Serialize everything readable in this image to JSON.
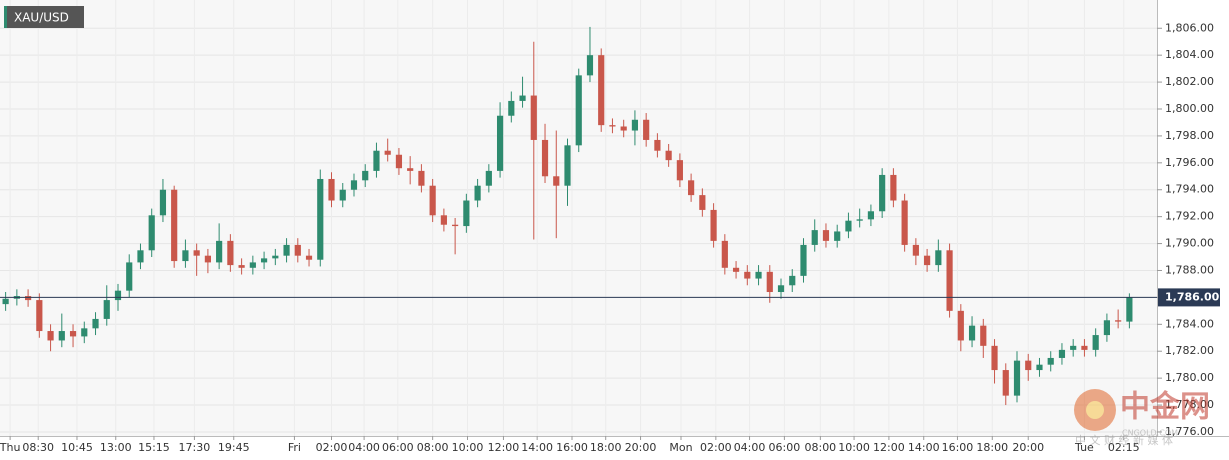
{
  "chart_data": {
    "type": "candlestick",
    "symbol": "XAU/USD",
    "up_color": "#2e8b6f",
    "down_color": "#c9574b",
    "grid": true,
    "open": [
      1785.5,
      1785.9,
      1786.1,
      1785.8,
      1783.5,
      1782.8,
      1783.5,
      1783.1,
      1783.7,
      1784.4,
      1785.8,
      1786.5,
      1788.6,
      1789.5,
      1792.1,
      1794.0,
      1788.7,
      1789.5,
      1789.1,
      1788.6,
      1790.2,
      1788.4,
      1788.2,
      1788.6,
      1788.9,
      1789.1,
      1789.9,
      1789.1,
      1788.8,
      1794.8,
      1793.2,
      1794.0,
      1794.7,
      1795.4,
      1796.9,
      1796.6,
      1795.6,
      1795.4,
      1794.3,
      1792.1,
      1791.4,
      1791.3,
      1793.2,
      1794.3,
      1795.4,
      1799.5,
      1800.6,
      1801.0,
      1797.7,
      1795.0,
      1794.3,
      1797.3,
      1802.5,
      1804.0,
      1798.8,
      1798.7,
      1798.4,
      1799.2,
      1797.7,
      1796.9,
      1796.2,
      1794.7,
      1793.6,
      1792.5,
      1790.2,
      1788.2,
      1787.9,
      1787.4,
      1787.9,
      1786.4,
      1786.9,
      1787.6,
      1789.9,
      1791.0,
      1790.2,
      1790.9,
      1791.7,
      1791.8,
      1792.4,
      1795.1,
      1793.2,
      1789.9,
      1789.1,
      1788.4,
      1789.5,
      1785.0,
      1782.8,
      1783.9,
      1782.4,
      1780.6,
      1778.7,
      1781.3,
      1780.6,
      1781.0,
      1781.5,
      1782.1,
      1782.4,
      1782.1,
      1783.2,
      1784.3,
      1784.2
    ],
    "high": [
      1786.4,
      1786.6,
      1786.6,
      1786.3,
      1784.0,
      1784.8,
      1784.0,
      1784.2,
      1784.9,
      1786.9,
      1787.0,
      1789.2,
      1790.0,
      1792.6,
      1794.8,
      1794.3,
      1790.3,
      1790.0,
      1789.6,
      1791.5,
      1790.7,
      1788.9,
      1789.1,
      1789.4,
      1789.6,
      1790.4,
      1790.4,
      1789.6,
      1795.5,
      1795.3,
      1794.5,
      1795.2,
      1795.9,
      1797.5,
      1797.8,
      1797.1,
      1796.5,
      1795.9,
      1794.8,
      1792.6,
      1791.9,
      1793.7,
      1794.8,
      1795.9,
      1800.5,
      1801.3,
      1802.4,
      1805.0,
      1798.9,
      1798.4,
      1797.8,
      1803.0,
      1806.1,
      1804.5,
      1799.3,
      1799.2,
      1799.9,
      1799.7,
      1798.2,
      1797.4,
      1796.7,
      1795.2,
      1794.1,
      1793.0,
      1790.7,
      1788.7,
      1788.4,
      1788.4,
      1788.4,
      1787.4,
      1788.1,
      1790.4,
      1791.8,
      1791.5,
      1791.4,
      1792.3,
      1792.6,
      1792.9,
      1795.6,
      1795.6,
      1793.7,
      1790.4,
      1789.6,
      1790.3,
      1790.0,
      1785.5,
      1784.6,
      1784.4,
      1782.9,
      1781.1,
      1782.0,
      1781.8,
      1781.5,
      1782.0,
      1782.6,
      1782.9,
      1782.9,
      1783.7,
      1784.8,
      1785.1,
      1786.3
    ],
    "low": [
      1785.0,
      1785.4,
      1785.3,
      1783.0,
      1782.0,
      1782.3,
      1782.3,
      1782.6,
      1783.2,
      1783.9,
      1785.0,
      1786.0,
      1788.1,
      1789.0,
      1791.6,
      1788.2,
      1788.2,
      1787.6,
      1787.8,
      1788.1,
      1787.9,
      1787.7,
      1787.7,
      1788.1,
      1788.4,
      1788.6,
      1788.6,
      1788.3,
      1788.3,
      1792.7,
      1792.7,
      1793.5,
      1794.2,
      1794.9,
      1796.1,
      1795.1,
      1794.4,
      1793.8,
      1791.6,
      1790.9,
      1789.2,
      1790.8,
      1792.7,
      1793.8,
      1794.9,
      1799.0,
      1800.1,
      1790.3,
      1794.5,
      1790.4,
      1792.8,
      1796.8,
      1802.0,
      1798.3,
      1798.2,
      1797.9,
      1797.3,
      1797.2,
      1796.4,
      1795.7,
      1794.2,
      1793.1,
      1792.0,
      1789.7,
      1787.7,
      1787.4,
      1786.9,
      1786.9,
      1785.6,
      1785.9,
      1786.4,
      1787.1,
      1789.4,
      1789.7,
      1789.7,
      1790.4,
      1791.2,
      1791.3,
      1791.9,
      1792.7,
      1789.4,
      1788.4,
      1787.9,
      1787.9,
      1784.5,
      1782.0,
      1782.3,
      1781.5,
      1779.6,
      1778.0,
      1778.2,
      1779.8,
      1780.1,
      1780.5,
      1781.0,
      1781.6,
      1781.6,
      1781.6,
      1782.7,
      1783.7,
      1783.7
    ],
    "close": [
      1785.9,
      1786.1,
      1785.8,
      1783.5,
      1782.8,
      1783.5,
      1783.1,
      1783.7,
      1784.4,
      1785.8,
      1786.5,
      1788.6,
      1789.5,
      1792.1,
      1794.0,
      1788.7,
      1789.5,
      1789.1,
      1788.6,
      1790.2,
      1788.4,
      1788.2,
      1788.6,
      1788.9,
      1789.1,
      1789.9,
      1789.1,
      1788.8,
      1794.8,
      1793.2,
      1794.0,
      1794.7,
      1795.4,
      1796.9,
      1796.6,
      1795.6,
      1795.4,
      1794.3,
      1792.1,
      1791.4,
      1791.3,
      1793.2,
      1794.3,
      1795.4,
      1799.5,
      1800.6,
      1801.0,
      1797.7,
      1795.0,
      1794.3,
      1797.3,
      1802.5,
      1804.0,
      1798.8,
      1798.7,
      1798.4,
      1799.2,
      1797.7,
      1796.9,
      1796.2,
      1794.7,
      1793.6,
      1792.5,
      1790.2,
      1788.2,
      1787.9,
      1787.4,
      1787.9,
      1786.4,
      1786.9,
      1787.6,
      1789.9,
      1791.0,
      1790.2,
      1790.9,
      1791.7,
      1791.8,
      1792.4,
      1795.1,
      1793.2,
      1789.9,
      1789.1,
      1788.4,
      1789.5,
      1785.0,
      1782.8,
      1783.9,
      1782.4,
      1780.6,
      1778.7,
      1781.3,
      1780.6,
      1781.0,
      1781.5,
      1782.1,
      1782.4,
      1782.1,
      1783.2,
      1784.3,
      1784.2,
      1786.0
    ],
    "xlim": [
      -0.5,
      100.5
    ],
    "xticks": [
      {
        "value": 0.4,
        "label": "Thu"
      },
      {
        "value": 2.9,
        "label": "08:30"
      },
      {
        "value": 6.35,
        "label": "10:45"
      },
      {
        "value": 9.8,
        "label": "13:00"
      },
      {
        "value": 13.2,
        "label": "15:15"
      },
      {
        "value": 16.8,
        "label": "17:30"
      },
      {
        "value": 20.3,
        "label": "19:45"
      },
      {
        "value": 25.7,
        "label": "Fri"
      },
      {
        "value": 29,
        "label": "02:00"
      },
      {
        "value": 31.9,
        "label": "04:00"
      },
      {
        "value": 34.9,
        "label": "06:00"
      },
      {
        "value": 38,
        "label": "08:00"
      },
      {
        "value": 41.1,
        "label": "10:00"
      },
      {
        "value": 44.3,
        "label": "12:00"
      },
      {
        "value": 47.3,
        "label": "14:00"
      },
      {
        "value": 50.4,
        "label": "16:00"
      },
      {
        "value": 53.4,
        "label": "18:00"
      },
      {
        "value": 56.5,
        "label": "20:00"
      },
      {
        "value": 60.1,
        "label": "Mon"
      },
      {
        "value": 63.2,
        "label": "02:00"
      },
      {
        "value": 66.2,
        "label": "04:00"
      },
      {
        "value": 69.3,
        "label": "06:00"
      },
      {
        "value": 72.5,
        "label": "08:00"
      },
      {
        "value": 75.5,
        "label": "10:00"
      },
      {
        "value": 78.6,
        "label": "12:00"
      },
      {
        "value": 81.7,
        "label": "14:00"
      },
      {
        "value": 84.7,
        "label": "16:00"
      },
      {
        "value": 87.8,
        "label": "18:00"
      },
      {
        "value": 91,
        "label": "20:00"
      },
      {
        "value": 96,
        "label": "Tue"
      },
      {
        "value": 99.5,
        "label": "02:15"
      }
    ],
    "ylim": [
      1775.7,
      1808.1
    ],
    "yticks": [
      {
        "value": 1776,
        "label": "1,776.00"
      },
      {
        "value": 1778,
        "label": "1,778.00"
      },
      {
        "value": 1780,
        "label": "1,780.00"
      },
      {
        "value": 1782,
        "label": "1,782.00"
      },
      {
        "value": 1784,
        "label": "1,784.00"
      },
      {
        "value": 1786,
        "label": "1,786.00"
      },
      {
        "value": 1788,
        "label": "1,788.00"
      },
      {
        "value": 1790,
        "label": "1,790.00"
      },
      {
        "value": 1792,
        "label": "1,792.00"
      },
      {
        "value": 1794,
        "label": "1,794.00"
      },
      {
        "value": 1796,
        "label": "1,796.00"
      },
      {
        "value": 1798,
        "label": "1,798.00"
      },
      {
        "value": 1800,
        "label": "1,800.00"
      },
      {
        "value": 1802,
        "label": "1,802.00"
      },
      {
        "value": 1804,
        "label": "1,804.00"
      },
      {
        "value": 1806,
        "label": "1,806.00"
      }
    ],
    "last_price": {
      "value": 1786,
      "label": "1,786.00"
    },
    "watermark": {
      "logo": "中金网",
      "site": "CNGOLD.COM",
      "slogan": "中 文 财 经 新 媒 体"
    }
  }
}
